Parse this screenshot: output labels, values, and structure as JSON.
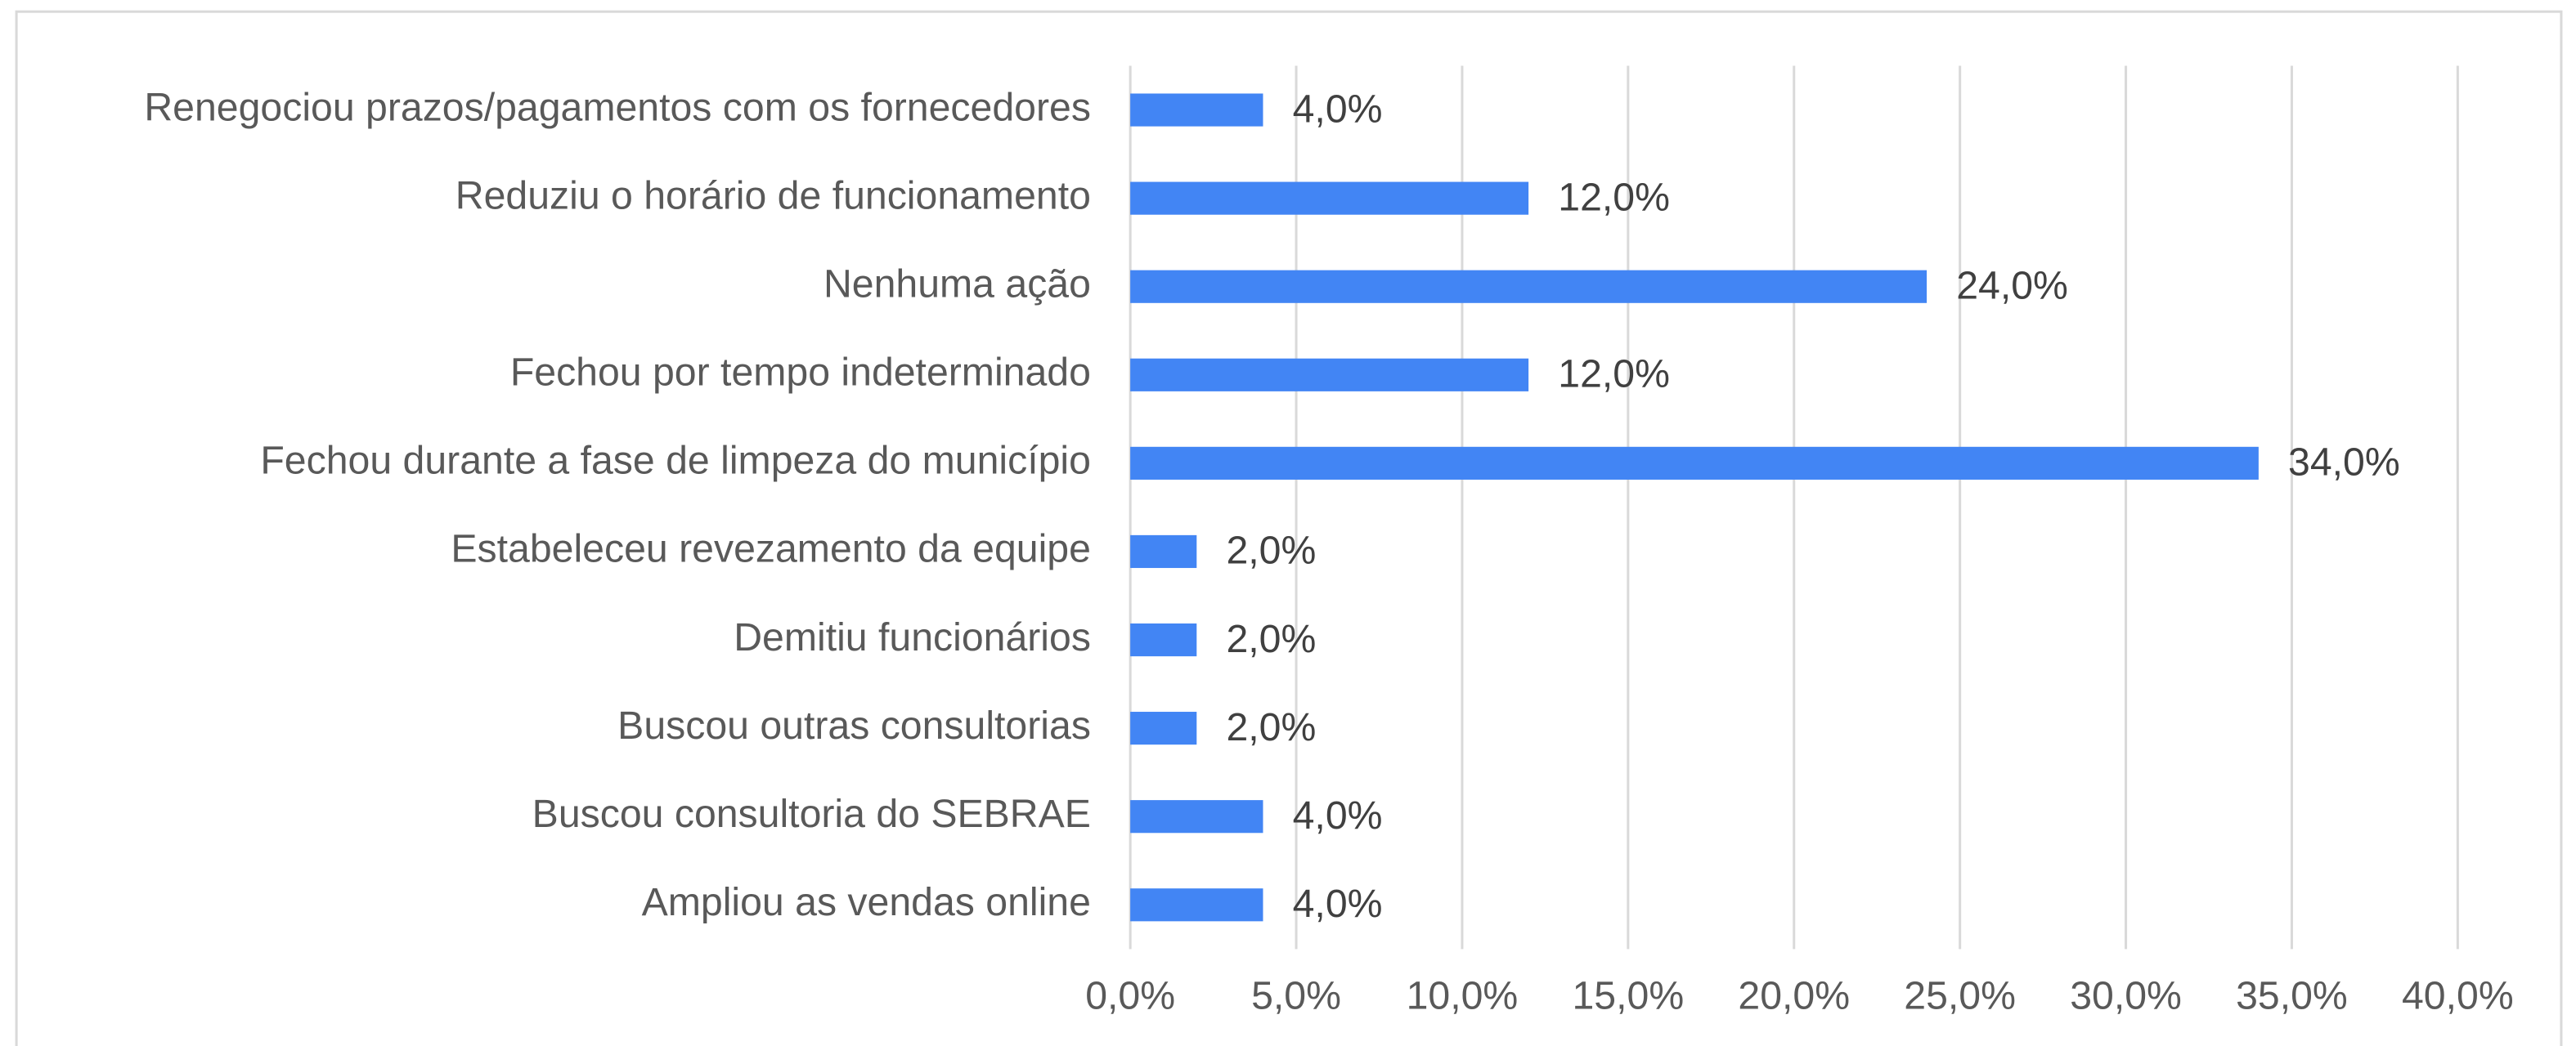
{
  "chart_data": {
    "type": "bar",
    "orientation": "horizontal",
    "categories": [
      "Renegociou prazos/pagamentos com os fornecedores",
      "Reduziu o horário de funcionamento",
      "Nenhuma ação",
      "Fechou por tempo indeterminado",
      "Fechou durante a fase de limpeza do município",
      "Estabeleceu revezamento da equipe",
      "Demitiu funcionários",
      "Buscou outras consultorias",
      "Buscou consultoria do SEBRAE",
      "Ampliou as vendas online"
    ],
    "values": [
      4,
      12,
      24,
      12,
      34,
      2,
      2,
      2,
      4,
      4
    ],
    "value_labels": [
      "4,0%",
      "12,0%",
      "24,0%",
      "12,0%",
      "34,0%",
      "2,0%",
      "2,0%",
      "2,0%",
      "4,0%",
      "4,0%"
    ],
    "color": "#4285f4",
    "xlim": [
      0,
      40
    ],
    "xticks": [
      {
        "value": 0,
        "label": "0,0%"
      },
      {
        "value": 5,
        "label": "5,0%"
      },
      {
        "value": 10,
        "label": "10,0%"
      },
      {
        "value": 15,
        "label": "15,0%"
      },
      {
        "value": 20,
        "label": "20,0%"
      },
      {
        "value": 25,
        "label": "25,0%"
      },
      {
        "value": 30,
        "label": "30,0%"
      },
      {
        "value": 35,
        "label": "35,0%"
      },
      {
        "value": 40,
        "label": "40,0%"
      }
    ],
    "grid": true
  }
}
